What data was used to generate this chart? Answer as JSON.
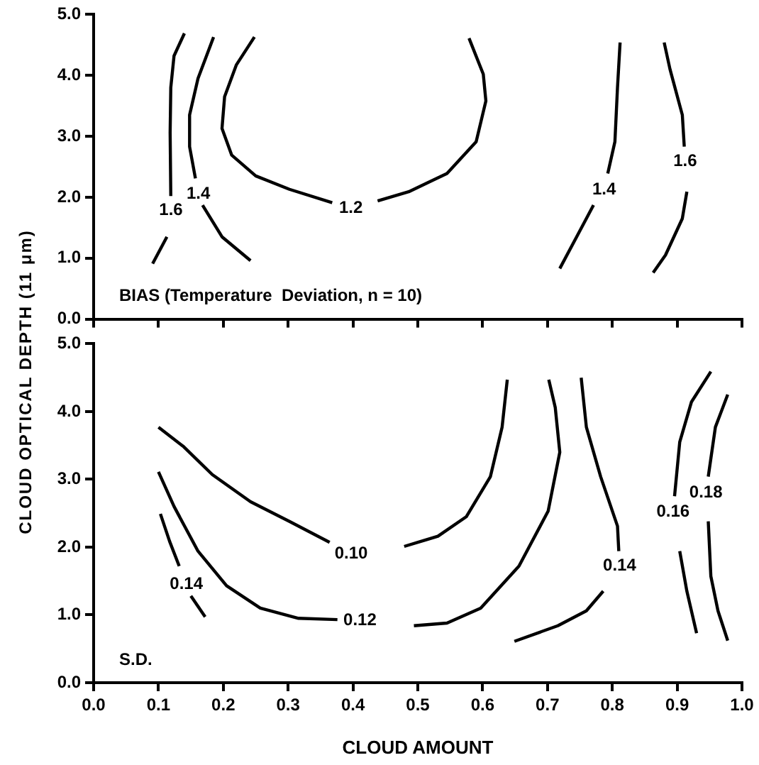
{
  "chart_data": [
    {
      "type": "line",
      "ylabel": "CLOUD OPTICAL DEPTH (11 μm)",
      "xlim": [
        0,
        1
      ],
      "ylim": [
        0,
        5
      ],
      "annotations": [
        "BIAS (Temperature  Deviation, n = 10)"
      ],
      "xticks": [
        {
          "value": 0,
          "label": null
        },
        {
          "value": 0.1,
          "label": null
        },
        {
          "value": 0.2,
          "label": null
        },
        {
          "value": 0.3,
          "label": null
        },
        {
          "value": 0.4,
          "label": null
        },
        {
          "value": 0.5,
          "label": null
        },
        {
          "value": 0.6,
          "label": null
        },
        {
          "value": 0.7,
          "label": null
        },
        {
          "value": 0.8,
          "label": null
        },
        {
          "value": 0.9,
          "label": null
        },
        {
          "value": 1,
          "label": null
        }
      ],
      "yticks": [
        {
          "value": 0,
          "label": "0.0"
        },
        {
          "value": 1,
          "label": "1.0"
        },
        {
          "value": 2,
          "label": "2.0"
        },
        {
          "value": 3,
          "label": "3.0"
        },
        {
          "value": 4,
          "label": "4.0"
        },
        {
          "value": 5,
          "label": "5.0"
        }
      ],
      "tick_labels": "y",
      "grid": false,
      "legend": false,
      "marker": "none",
      "line_style": "solid",
      "series": [
        {
          "name": "1.6",
          "color": "#000000",
          "x": [
            0.14,
            0.124,
            0.119,
            0.118,
            0.119
          ],
          "values": [
            4.69,
            4.32,
            3.8,
            3.06,
            2.02
          ]
        },
        {
          "color": "#000000",
          "x": [
            0.113,
            0.091
          ],
          "values": [
            1.35,
            0.91
          ]
        },
        {
          "name": "1.4",
          "color": "#000000",
          "x": [
            0.185,
            0.161,
            0.148,
            0.148,
            0.157
          ],
          "values": [
            4.63,
            3.95,
            3.35,
            2.83,
            2.31
          ]
        },
        {
          "color": "#000000",
          "x": [
            0.168,
            0.198,
            0.242
          ],
          "values": [
            1.87,
            1.35,
            0.96
          ]
        },
        {
          "name": "1.2",
          "color": "#000000",
          "x": [
            0.248,
            0.22,
            0.202,
            0.198,
            0.213,
            0.25,
            0.302,
            0.368
          ],
          "values": [
            4.63,
            4.17,
            3.65,
            3.13,
            2.69,
            2.35,
            2.13,
            1.91
          ]
        },
        {
          "color": "#000000",
          "x": [
            0.438,
            0.486,
            0.545,
            0.59,
            0.605,
            0.601,
            0.579
          ],
          "values": [
            1.94,
            2.09,
            2.39,
            2.91,
            3.58,
            4.02,
            4.61
          ]
        },
        {
          "name": "1.4",
          "color": "#000000",
          "x": [
            0.812,
            0.808,
            0.804,
            0.793
          ],
          "values": [
            4.54,
            3.8,
            2.91,
            2.39
          ]
        },
        {
          "color": "#000000",
          "x": [
            0.771,
            0.745,
            0.719
          ],
          "values": [
            1.87,
            1.35,
            0.83
          ]
        },
        {
          "name": "1.6",
          "color": "#000000",
          "x": [
            0.88,
            0.889,
            0.908,
            0.911
          ],
          "values": [
            4.54,
            4.1,
            3.35,
            2.83
          ]
        },
        {
          "color": "#000000",
          "x": [
            0.915,
            0.908,
            0.882,
            0.863
          ],
          "values": [
            2.09,
            1.65,
            1.05,
            0.76
          ]
        }
      ]
    },
    {
      "type": "line",
      "xlabel": "CLOUD AMOUNT",
      "xlim": [
        0,
        1
      ],
      "ylim": [
        0,
        5
      ],
      "annotations": [
        "S.D."
      ],
      "xticks": [
        {
          "value": 0,
          "label": "0.0"
        },
        {
          "value": 0.1,
          "label": "0.1"
        },
        {
          "value": 0.2,
          "label": "0.2"
        },
        {
          "value": 0.3,
          "label": "0.3"
        },
        {
          "value": 0.4,
          "label": "0.4"
        },
        {
          "value": 0.5,
          "label": "0.5"
        },
        {
          "value": 0.6,
          "label": "0.6"
        },
        {
          "value": 0.7,
          "label": "0.7"
        },
        {
          "value": 0.8,
          "label": "0.8"
        },
        {
          "value": 0.9,
          "label": "0.9"
        },
        {
          "value": 1,
          "label": "1.0"
        }
      ],
      "yticks": [
        {
          "value": 0,
          "label": "0.0"
        },
        {
          "value": 1,
          "label": "1.0"
        },
        {
          "value": 2,
          "label": "2.0"
        },
        {
          "value": 3,
          "label": "3.0"
        },
        {
          "value": 4,
          "label": "4.0"
        },
        {
          "value": 5,
          "label": "5.0"
        }
      ],
      "grid": false,
      "legend": false,
      "marker": "none",
      "line_style": "solid",
      "series": [
        {
          "name": "0.10",
          "color": "#000000",
          "x": [
            0.1,
            0.139,
            0.183,
            0.242,
            0.302,
            0.364
          ],
          "values": [
            3.77,
            3.48,
            3.07,
            2.67,
            2.38,
            2.07
          ]
        },
        {
          "color": "#000000",
          "x": [
            0.479,
            0.531,
            0.575,
            0.612,
            0.63,
            0.638
          ],
          "values": [
            2.01,
            2.16,
            2.45,
            3.04,
            3.77,
            4.47
          ]
        },
        {
          "name": "0.12",
          "color": "#000000",
          "x": [
            0.1,
            0.124,
            0.161,
            0.205,
            0.257,
            0.316,
            0.376
          ],
          "values": [
            3.11,
            2.6,
            1.94,
            1.43,
            1.1,
            0.95,
            0.93
          ]
        },
        {
          "color": "#000000",
          "x": [
            0.494,
            0.545,
            0.597,
            0.656,
            0.701,
            0.719,
            0.712,
            0.702
          ],
          "values": [
            0.84,
            0.88,
            1.1,
            1.72,
            2.53,
            3.4,
            4.06,
            4.47
          ]
        },
        {
          "name": "0.14",
          "color": "#000000",
          "x": [
            0.103,
            0.117,
            0.132
          ],
          "values": [
            2.49,
            2.09,
            1.72
          ]
        },
        {
          "color": "#000000",
          "x": [
            0.15,
            0.172
          ],
          "values": [
            1.28,
            0.97
          ]
        },
        {
          "name": "0.14",
          "color": "#000000",
          "x": [
            0.752,
            0.76,
            0.782,
            0.808,
            0.81
          ],
          "values": [
            4.5,
            3.77,
            3.04,
            2.31,
            1.94
          ]
        },
        {
          "color": "#000000",
          "x": [
            0.786,
            0.76,
            0.716,
            0.649
          ],
          "values": [
            1.35,
            1.06,
            0.84,
            0.61
          ]
        },
        {
          "name": "0.16",
          "color": "#000000",
          "x": [
            0.952,
            0.922,
            0.904,
            0.896
          ],
          "values": [
            4.59,
            4.14,
            3.55,
            2.75
          ]
        },
        {
          "color": "#000000",
          "x": [
            0.904,
            0.915,
            0.93
          ],
          "values": [
            1.94,
            1.35,
            0.73
          ]
        },
        {
          "name": "0.18",
          "color": "#000000",
          "x": [
            0.978,
            0.959,
            0.948
          ],
          "values": [
            4.25,
            3.77,
            3.04
          ]
        },
        {
          "color": "#000000",
          "x": [
            0.948,
            0.952,
            0.963,
            0.978
          ],
          "values": [
            2.38,
            1.57,
            1.06,
            0.62
          ]
        }
      ]
    }
  ]
}
